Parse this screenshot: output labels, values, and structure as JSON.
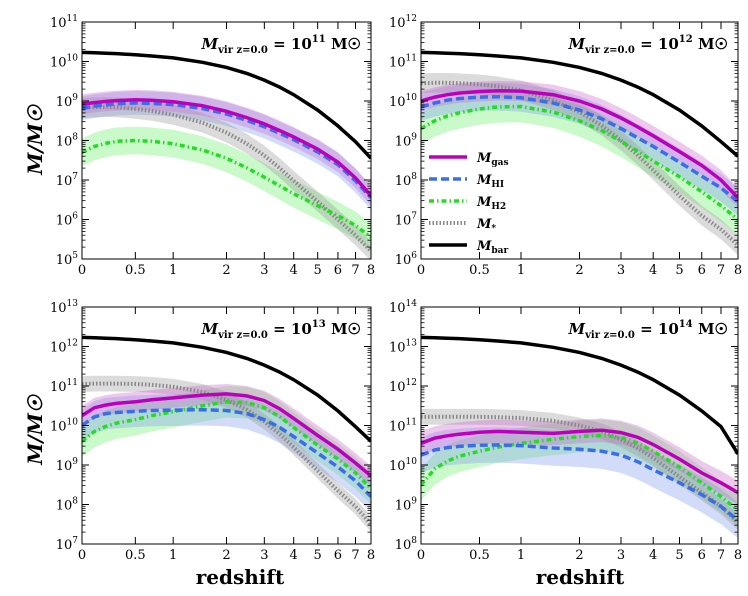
{
  "chart_data": {
    "type": "line",
    "ylabel": "M/M☉",
    "xlabel": "redshift",
    "x_ticks": [
      "0",
      "0.5",
      "1",
      "2",
      "3",
      "4",
      "5",
      "6",
      "7",
      "8"
    ],
    "x_tick_values": [
      0,
      0.5,
      1,
      2,
      3,
      4,
      5,
      6,
      7,
      8
    ],
    "legend": {
      "placement": "panel 2, left-middle",
      "entries": [
        {
          "key": "gas",
          "label": "Mgas",
          "color": "#bb00bb"
        },
        {
          "key": "HI",
          "label": "MHI",
          "color": "#3a6ee8"
        },
        {
          "key": "H2",
          "label": "MH2",
          "color": "#22dd22"
        },
        {
          "key": "star",
          "label": "M*",
          "color": "#888888"
        },
        {
          "key": "bar",
          "label": "Mbar",
          "color": "#000000"
        }
      ]
    },
    "x": [
      0,
      0.1,
      0.2,
      0.3,
      0.5,
      0.7,
      1,
      1.5,
      2,
      2.5,
      3,
      3.5,
      4,
      5,
      6,
      7,
      8
    ],
    "panels": [
      {
        "title": "Mvir z=0.0 = 10^11 M☉",
        "title_main": "M",
        "title_sub": "vir z=0.0",
        "title_eq": " = 10",
        "title_exp": "11",
        "title_unit": " M☉",
        "ylim_exp": [
          5,
          11
        ],
        "y_tick_labels": [
          "10^5",
          "10^6",
          "10^7",
          "10^8",
          "10^9",
          "10^10",
          "10^11"
        ],
        "series": {
          "bar": [
            10.23,
            10.22,
            10.21,
            10.2,
            10.17,
            10.14,
            10.09,
            9.98,
            9.85,
            9.7,
            9.53,
            9.35,
            9.16,
            8.77,
            8.37,
            7.97,
            7.55
          ],
          "gas": [
            8.92,
            8.96,
            8.99,
            9.01,
            9.03,
            9.02,
            8.98,
            8.88,
            8.74,
            8.58,
            8.42,
            8.25,
            8.09,
            7.78,
            7.45,
            7.05,
            6.6
          ],
          "HI": [
            8.82,
            8.87,
            8.9,
            8.93,
            8.95,
            8.94,
            8.91,
            8.81,
            8.67,
            8.51,
            8.35,
            8.18,
            8.02,
            7.71,
            7.39,
            6.98,
            6.55
          ],
          "H2": [
            7.7,
            7.85,
            7.93,
            7.98,
            8.0,
            7.98,
            7.92,
            7.76,
            7.55,
            7.31,
            7.07,
            6.85,
            6.65,
            6.35,
            6.1,
            5.85,
            5.55
          ],
          "star": [
            8.82,
            8.84,
            8.85,
            8.84,
            8.8,
            8.75,
            8.65,
            8.45,
            8.2,
            7.92,
            7.62,
            7.3,
            6.98,
            6.45,
            6.0,
            5.6,
            5.2
          ],
          "gas_band": 0.25,
          "HI_band": 0.3,
          "H2_band": 0.35,
          "star_band": 0.25
        }
      },
      {
        "title": "Mvir z=0.0 = 10^12 M☉",
        "title_main": "M",
        "title_sub": "vir z=0.0",
        "title_eq": " = 10",
        "title_exp": "12",
        "title_unit": " M☉",
        "ylim_exp": [
          6,
          12
        ],
        "y_tick_labels": [
          "10^6",
          "10^7",
          "10^8",
          "10^9",
          "10^10",
          "10^11",
          "10^12"
        ],
        "series": {
          "bar": [
            11.23,
            11.22,
            11.21,
            11.2,
            11.17,
            11.14,
            11.09,
            10.98,
            10.85,
            10.7,
            10.53,
            10.35,
            10.16,
            9.77,
            9.37,
            8.97,
            8.6
          ],
          "gas": [
            10.0,
            10.1,
            10.16,
            10.2,
            10.24,
            10.26,
            10.25,
            10.16,
            10.0,
            9.8,
            9.57,
            9.34,
            9.12,
            8.72,
            8.37,
            8.0,
            7.55
          ],
          "HI": [
            9.85,
            9.95,
            10.02,
            10.06,
            10.1,
            10.11,
            10.08,
            9.95,
            9.77,
            9.55,
            9.3,
            9.06,
            8.85,
            8.45,
            8.1,
            7.8,
            7.45
          ],
          "H2": [
            9.3,
            9.5,
            9.62,
            9.7,
            9.8,
            9.85,
            9.86,
            9.72,
            9.5,
            9.25,
            8.98,
            8.72,
            8.48,
            8.08,
            7.7,
            7.35,
            7.0
          ],
          "star": [
            10.45,
            10.46,
            10.46,
            10.45,
            10.42,
            10.37,
            10.27,
            10.02,
            9.72,
            9.38,
            9.0,
            8.62,
            8.25,
            7.6,
            7.1,
            6.75,
            6.35
          ],
          "gas_band": 0.25,
          "HI_band": 0.35,
          "H2_band": 0.4,
          "star_band": 0.25
        }
      },
      {
        "title": "Mvir z=0.0 = 10^13 M☉",
        "title_main": "M",
        "title_sub": "vir z=0.0",
        "title_eq": " = 10",
        "title_exp": "13",
        "title_unit": " M☉",
        "ylim_exp": [
          7,
          13
        ],
        "y_tick_labels": [
          "10^7",
          "10^8",
          "10^9",
          "10^10",
          "10^11",
          "10^12",
          "10^13"
        ],
        "series": {
          "bar": [
            12.23,
            12.22,
            12.21,
            12.2,
            12.17,
            12.14,
            12.09,
            11.98,
            11.85,
            11.7,
            11.53,
            11.35,
            11.16,
            10.77,
            10.37,
            9.97,
            9.6
          ],
          "gas": [
            10.25,
            10.45,
            10.52,
            10.56,
            10.6,
            10.65,
            10.7,
            10.77,
            10.8,
            10.75,
            10.63,
            10.42,
            10.18,
            9.75,
            9.4,
            9.05,
            8.72
          ],
          "HI": [
            10.0,
            10.22,
            10.3,
            10.33,
            10.36,
            10.38,
            10.39,
            10.4,
            10.38,
            10.3,
            10.15,
            9.95,
            9.72,
            9.3,
            8.95,
            8.6,
            8.2
          ],
          "H2": [
            9.6,
            9.85,
            9.98,
            10.06,
            10.15,
            10.25,
            10.35,
            10.5,
            10.6,
            10.58,
            10.45,
            10.22,
            9.95,
            9.5,
            9.15,
            8.8,
            8.4
          ],
          "star": [
            11.05,
            11.06,
            11.06,
            11.06,
            11.05,
            11.03,
            10.98,
            10.85,
            10.65,
            10.4,
            10.1,
            9.78,
            9.45,
            8.85,
            8.35,
            7.95,
            7.5
          ],
          "gas_band": 0.25,
          "HI_band": 0.4,
          "H2_band": 0.4,
          "star_band": 0.2
        }
      },
      {
        "title": "Mvir z=0.0 = 10^14 M☉",
        "title_main": "M",
        "title_sub": "vir z=0.0",
        "title_eq": " = 10",
        "title_exp": "14",
        "title_unit": " M☉",
        "ylim_exp": [
          8,
          14
        ],
        "y_tick_labels": [
          "10^8",
          "10^9",
          "10^10",
          "10^11",
          "10^12",
          "10^13",
          "10^14"
        ],
        "series": {
          "bar": [
            13.23,
            13.22,
            13.21,
            13.2,
            13.17,
            13.14,
            13.09,
            12.98,
            12.85,
            12.7,
            12.53,
            12.35,
            12.16,
            11.77,
            11.37,
            10.97,
            10.28
          ],
          "gas": [
            10.55,
            10.68,
            10.74,
            10.78,
            10.83,
            10.85,
            10.83,
            10.8,
            10.85,
            10.88,
            10.82,
            10.7,
            10.52,
            10.15,
            9.8,
            9.55,
            9.3
          ],
          "HI": [
            10.25,
            10.38,
            10.44,
            10.47,
            10.5,
            10.51,
            10.49,
            10.43,
            10.4,
            10.35,
            10.25,
            10.08,
            9.88,
            9.55,
            9.25,
            8.95,
            8.6
          ],
          "H2": [
            9.5,
            9.9,
            10.1,
            10.22,
            10.35,
            10.45,
            10.55,
            10.65,
            10.72,
            10.75,
            10.7,
            10.55,
            10.35,
            9.95,
            9.55,
            9.2,
            8.85
          ],
          "star": [
            11.22,
            11.22,
            11.22,
            11.22,
            11.22,
            11.21,
            11.19,
            11.12,
            11.0,
            10.85,
            10.65,
            10.42,
            10.18,
            9.7,
            9.3,
            8.95,
            8.55
          ],
          "gas_band": 0.3,
          "HI_band": 0.45,
          "H2_band": 0.4,
          "star_band": 0.2
        }
      }
    ]
  }
}
